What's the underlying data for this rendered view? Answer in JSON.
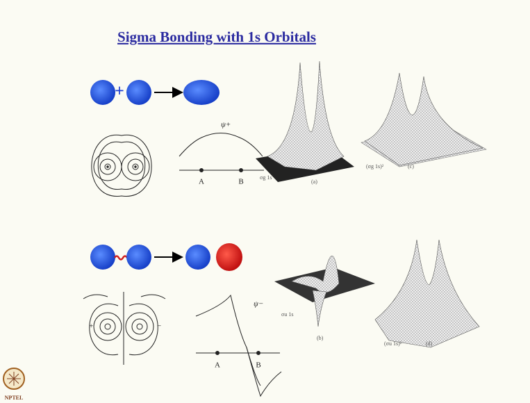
{
  "title": "Sigma Bonding with 1s Orbitals",
  "bonding": {
    "operator": "+",
    "psi_label": "ψ+",
    "points": [
      "A",
      "B"
    ],
    "plots": [
      {
        "axis": "σg 1s",
        "caption": "(a)"
      },
      {
        "axis": "(σg 1s)²",
        "caption": "(c)"
      }
    ]
  },
  "antibonding": {
    "psi_label": "ψ−",
    "points": [
      "A",
      "B"
    ],
    "signs": [
      "+",
      "−"
    ],
    "plots": [
      {
        "axis": "σu 1s",
        "caption": "(b)"
      },
      {
        "axis": "(σu 1s)²",
        "caption": "(d)"
      }
    ]
  },
  "logo": "NPTEL"
}
